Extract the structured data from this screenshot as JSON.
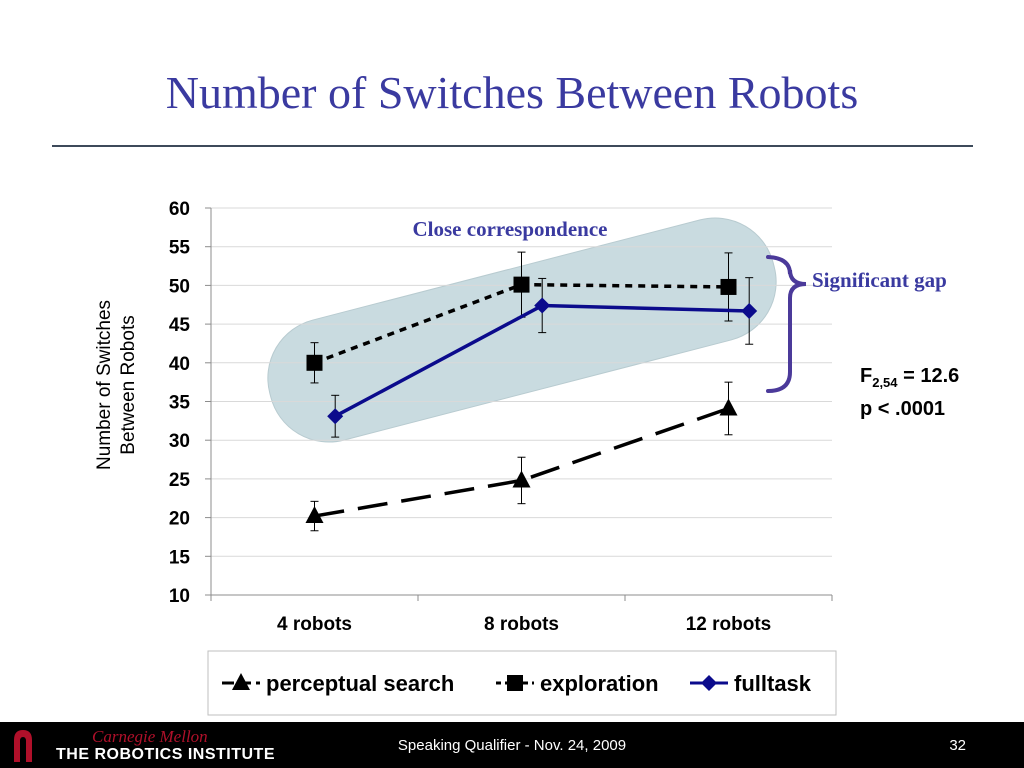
{
  "slide": {
    "title": "Number of Switches Between Robots"
  },
  "footer": {
    "cmu": "Carnegie Mellon",
    "institute": "THE ROBOTICS INSTITUTE",
    "center": "Speaking Qualifier - Nov. 24, 2009",
    "page": "32"
  },
  "annotations": {
    "close": "Close correspondence",
    "gap": "Significant gap",
    "stat_f_base": "F",
    "stat_f_sub": "2,54",
    "stat_f_rest": " = 12.6",
    "stat_p": "p < .0001"
  },
  "colors": {
    "title": "#3a3aa0",
    "fulltask": "#0b0b8c",
    "annotation": "#3a3aa0",
    "highlight": "#c9dbe0",
    "brace": "#4b3a9a"
  },
  "chart_data": {
    "type": "line",
    "categories": [
      "4 robots",
      "8 robots",
      "12 robots"
    ],
    "ylabel": "Number of Switches Between Robots",
    "ylim": [
      10,
      60
    ],
    "yticks": [
      10,
      15,
      20,
      25,
      30,
      35,
      40,
      45,
      50,
      55,
      60
    ],
    "grid": true,
    "legend_position": "bottom",
    "series": [
      {
        "name": "perceptual search",
        "values": [
          20.2,
          24.8,
          34.1
        ],
        "error": [
          1.9,
          3.0,
          3.4
        ],
        "marker": "triangle",
        "line": "long-dash",
        "color": "#000000"
      },
      {
        "name": "exploration",
        "values": [
          40.0,
          50.1,
          49.8
        ],
        "error": [
          2.6,
          4.2,
          4.4
        ],
        "marker": "square",
        "line": "dotted",
        "color": "#000000"
      },
      {
        "name": "fulltask",
        "values": [
          33.1,
          47.4,
          46.7
        ],
        "error": [
          2.7,
          3.5,
          4.3
        ],
        "marker": "diamond",
        "line": "solid",
        "color": "#0b0b8c"
      }
    ]
  }
}
